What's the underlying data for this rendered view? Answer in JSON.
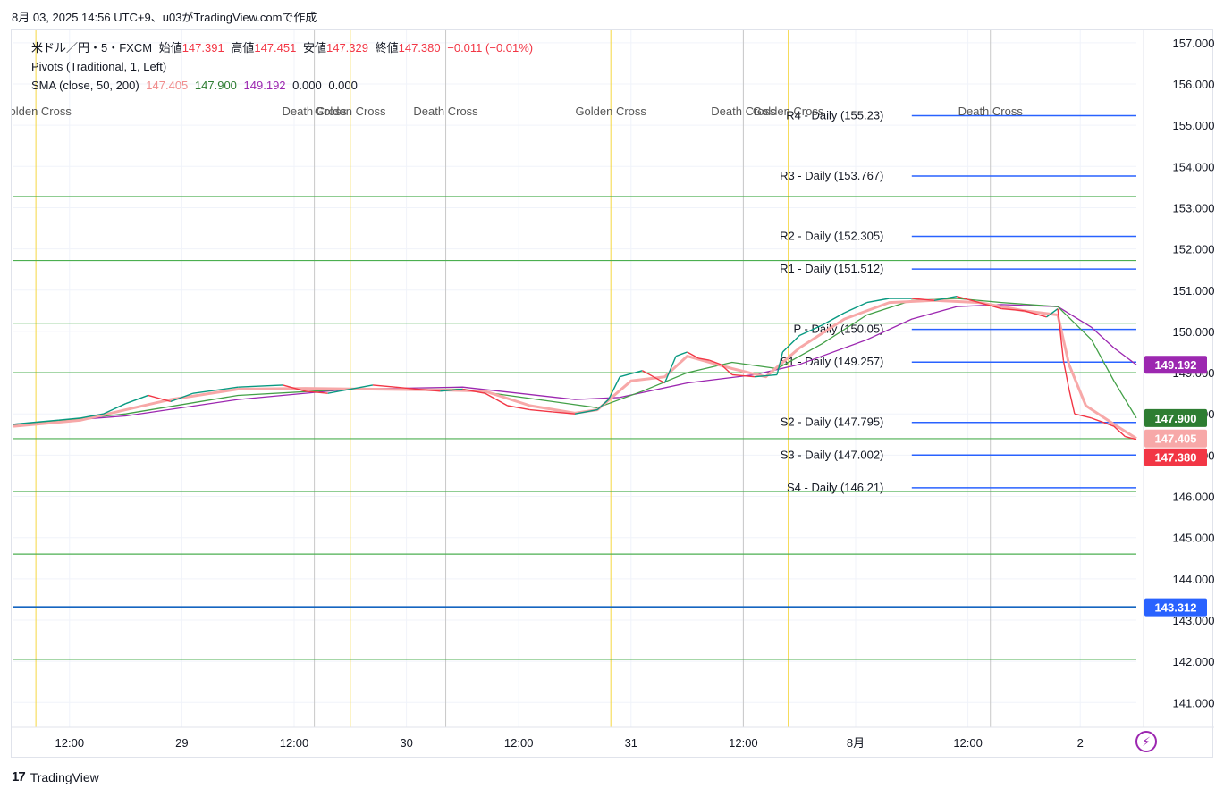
{
  "caption": "8月 03, 2025 14:56 UTC+9、u03がTradingView.comで作成",
  "header": {
    "symbol": "米ドル／円・5・FXCM",
    "open_label": "始値",
    "open": "147.391",
    "high_label": "高値",
    "high": "147.451",
    "low_label": "安値",
    "low": "147.329",
    "close_label": "終値",
    "close": "147.380",
    "change": "−0.011 (−0.01%)",
    "pivots_label": "Pivots (Traditional, 1, Left)",
    "sma_label": "SMA (close, 50, 200)",
    "sma_values": [
      "147.405",
      "147.900",
      "149.192",
      "0.000",
      "0.000"
    ]
  },
  "colors": {
    "up": "#089981",
    "down": "#f23645",
    "sma50": "#f7a8a8",
    "sma200_green": "#43a047",
    "sma_purple": "#9c27b0",
    "pivot": "#2962ff",
    "hline": "#4caf50",
    "cross": "#f5d742",
    "deathline": "#c8c8c8"
  },
  "footer": {
    "brand": "TradingView"
  },
  "chart_data": {
    "type": "line",
    "symbol": "USDJPY 5m",
    "ylim": [
      140.4,
      157.3
    ],
    "y_ticks": [
      "157.000",
      "156.000",
      "155.000",
      "154.000",
      "153.000",
      "152.000",
      "151.000",
      "150.000",
      "149.000",
      "148.000",
      "147.000",
      "146.000",
      "145.000",
      "144.000",
      "143.000",
      "142.000",
      "141.000"
    ],
    "x_ticks": [
      {
        "label": "12:00",
        "t": 0.05
      },
      {
        "label": "29",
        "t": 0.15
      },
      {
        "label": "12:00",
        "t": 0.25
      },
      {
        "label": "30",
        "t": 0.35
      },
      {
        "label": "12:00",
        "t": 0.45
      },
      {
        "label": "31",
        "t": 0.55
      },
      {
        "label": "12:00",
        "t": 0.65
      },
      {
        "label": "8月",
        "t": 0.75
      },
      {
        "label": "12:00",
        "t": 0.85
      },
      {
        "label": "2",
        "t": 0.95
      }
    ],
    "horizontal_levels": [
      153.27,
      151.72,
      150.2,
      149.0,
      147.4,
      146.12,
      144.6,
      142.05
    ],
    "key_level": 143.312,
    "pivots": [
      {
        "label": "R4 - Daily (155.23)",
        "value": 155.23
      },
      {
        "label": "R3 - Daily (153.767)",
        "value": 153.767
      },
      {
        "label": "R2 - Daily (152.305)",
        "value": 152.305
      },
      {
        "label": "R1 - Daily (151.512)",
        "value": 151.512
      },
      {
        "label": "P - Daily (150.05)",
        "value": 150.05
      },
      {
        "label": "S1 - Daily (149.257)",
        "value": 149.257
      },
      {
        "label": "S2 - Daily (147.795)",
        "value": 147.795
      },
      {
        "label": "S3 - Daily (147.002)",
        "value": 147.002
      },
      {
        "label": "S4 - Daily (146.21)",
        "value": 146.21
      }
    ],
    "cross_markers": [
      {
        "label": "Golden Cross",
        "t": 0.02,
        "kind": "golden"
      },
      {
        "label": "Death Cross",
        "t": 0.268,
        "kind": "death"
      },
      {
        "label": "Golden Cross",
        "t": 0.3,
        "kind": "golden"
      },
      {
        "label": "Death Cross",
        "t": 0.385,
        "kind": "death"
      },
      {
        "label": "Golden Cross",
        "t": 0.532,
        "kind": "golden"
      },
      {
        "label": "Death Cross",
        "t": 0.65,
        "kind": "death"
      },
      {
        "label": "Golden Cross",
        "t": 0.69,
        "kind": "golden"
      },
      {
        "label": "Death Cross",
        "t": 0.87,
        "kind": "death"
      }
    ],
    "price": [
      [
        0,
        147.75
      ],
      [
        0.02,
        147.8
      ],
      [
        0.04,
        147.85
      ],
      [
        0.06,
        147.9
      ],
      [
        0.08,
        148.0
      ],
      [
        0.1,
        148.25
      ],
      [
        0.12,
        148.45
      ],
      [
        0.14,
        148.3
      ],
      [
        0.16,
        148.5
      ],
      [
        0.2,
        148.65
      ],
      [
        0.24,
        148.7
      ],
      [
        0.26,
        148.55
      ],
      [
        0.28,
        148.5
      ],
      [
        0.3,
        148.6
      ],
      [
        0.32,
        148.7
      ],
      [
        0.34,
        148.65
      ],
      [
        0.36,
        148.6
      ],
      [
        0.38,
        148.55
      ],
      [
        0.4,
        148.6
      ],
      [
        0.42,
        148.5
      ],
      [
        0.44,
        148.2
      ],
      [
        0.46,
        148.1
      ],
      [
        0.48,
        148.05
      ],
      [
        0.5,
        148.0
      ],
      [
        0.52,
        148.1
      ],
      [
        0.53,
        148.35
      ],
      [
        0.54,
        148.9
      ],
      [
        0.56,
        149.05
      ],
      [
        0.57,
        148.9
      ],
      [
        0.58,
        148.75
      ],
      [
        0.59,
        149.4
      ],
      [
        0.6,
        149.5
      ],
      [
        0.61,
        149.35
      ],
      [
        0.62,
        149.3
      ],
      [
        0.63,
        149.2
      ],
      [
        0.64,
        148.95
      ],
      [
        0.66,
        148.9
      ],
      [
        0.68,
        148.95
      ],
      [
        0.685,
        149.5
      ],
      [
        0.7,
        149.9
      ],
      [
        0.72,
        150.15
      ],
      [
        0.74,
        150.45
      ],
      [
        0.76,
        150.7
      ],
      [
        0.78,
        150.8
      ],
      [
        0.8,
        150.8
      ],
      [
        0.82,
        150.75
      ],
      [
        0.84,
        150.85
      ],
      [
        0.86,
        150.7
      ],
      [
        0.88,
        150.55
      ],
      [
        0.9,
        150.5
      ],
      [
        0.92,
        150.35
      ],
      [
        0.93,
        150.55
      ],
      [
        0.935,
        149.3
      ],
      [
        0.94,
        148.6
      ],
      [
        0.945,
        148.0
      ],
      [
        0.96,
        147.9
      ],
      [
        0.97,
        147.8
      ],
      [
        0.98,
        147.7
      ],
      [
        0.99,
        147.45
      ],
      [
        1.0,
        147.38
      ]
    ],
    "sma_fast": [
      [
        0,
        147.7
      ],
      [
        0.06,
        147.85
      ],
      [
        0.1,
        148.1
      ],
      [
        0.14,
        148.35
      ],
      [
        0.2,
        148.6
      ],
      [
        0.26,
        148.62
      ],
      [
        0.32,
        148.6
      ],
      [
        0.38,
        148.58
      ],
      [
        0.42,
        148.55
      ],
      [
        0.46,
        148.2
      ],
      [
        0.5,
        148.02
      ],
      [
        0.52,
        148.1
      ],
      [
        0.55,
        148.8
      ],
      [
        0.58,
        148.9
      ],
      [
        0.6,
        149.4
      ],
      [
        0.64,
        149.1
      ],
      [
        0.67,
        148.9
      ],
      [
        0.7,
        149.6
      ],
      [
        0.74,
        150.3
      ],
      [
        0.78,
        150.7
      ],
      [
        0.82,
        150.75
      ],
      [
        0.86,
        150.7
      ],
      [
        0.9,
        150.5
      ],
      [
        0.93,
        150.4
      ],
      [
        0.94,
        149.2
      ],
      [
        0.955,
        148.2
      ],
      [
        0.98,
        147.75
      ],
      [
        1.0,
        147.405
      ]
    ],
    "sma_50": [
      [
        0,
        147.72
      ],
      [
        0.1,
        148.0
      ],
      [
        0.2,
        148.45
      ],
      [
        0.3,
        148.6
      ],
      [
        0.4,
        148.6
      ],
      [
        0.48,
        148.3
      ],
      [
        0.52,
        148.15
      ],
      [
        0.56,
        148.55
      ],
      [
        0.6,
        149.0
      ],
      [
        0.64,
        149.25
      ],
      [
        0.68,
        149.1
      ],
      [
        0.72,
        149.7
      ],
      [
        0.76,
        150.4
      ],
      [
        0.8,
        150.75
      ],
      [
        0.84,
        150.8
      ],
      [
        0.88,
        150.7
      ],
      [
        0.93,
        150.6
      ],
      [
        0.96,
        149.8
      ],
      [
        0.98,
        148.8
      ],
      [
        1.0,
        147.9
      ]
    ],
    "sma_200": [
      [
        0,
        147.75
      ],
      [
        0.1,
        147.95
      ],
      [
        0.2,
        148.35
      ],
      [
        0.3,
        148.6
      ],
      [
        0.4,
        148.65
      ],
      [
        0.5,
        148.35
      ],
      [
        0.54,
        148.4
      ],
      [
        0.6,
        148.75
      ],
      [
        0.66,
        148.95
      ],
      [
        0.7,
        149.2
      ],
      [
        0.76,
        149.8
      ],
      [
        0.8,
        150.3
      ],
      [
        0.84,
        150.6
      ],
      [
        0.88,
        150.65
      ],
      [
        0.93,
        150.6
      ],
      [
        0.96,
        150.1
      ],
      [
        0.98,
        149.6
      ],
      [
        1.0,
        149.192
      ]
    ],
    "price_tags": [
      {
        "label": "149.192",
        "value": 149.192,
        "color": "#9c27b0"
      },
      {
        "label": "147.900",
        "value": 147.9,
        "color": "#2e7d32"
      },
      {
        "label": "147.405",
        "value": 147.405,
        "color": "#f7a8a8"
      },
      {
        "label": "147.380",
        "value": 147.38,
        "color": "#f23645"
      },
      {
        "label": "143.312",
        "value": 143.312,
        "color": "#2962ff"
      }
    ]
  }
}
